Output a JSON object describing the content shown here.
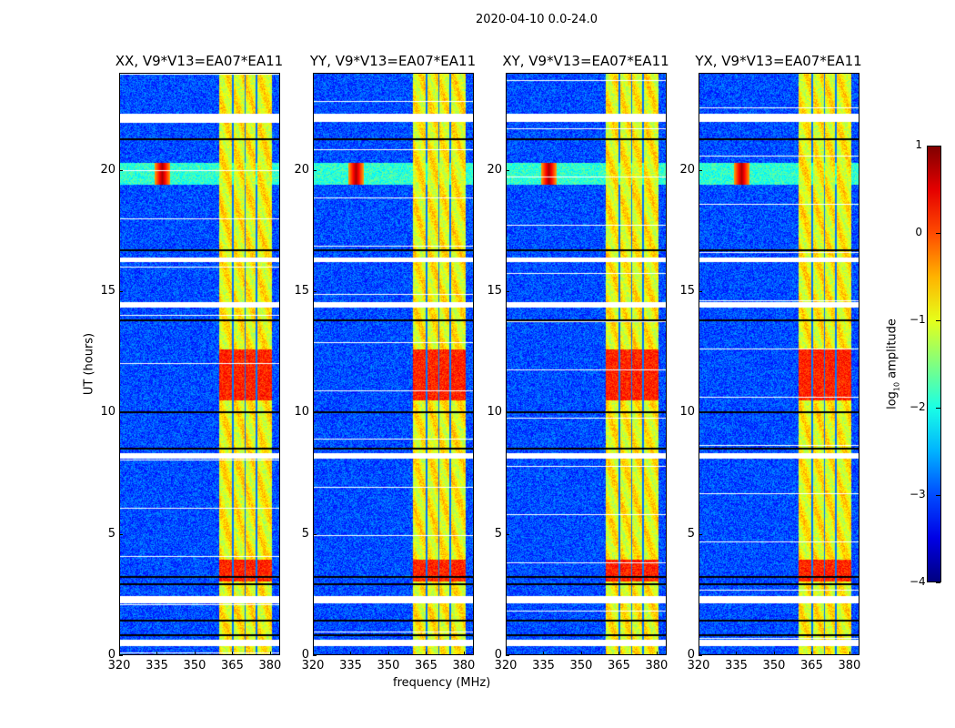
{
  "suptitle": "2020-04-10 0.0-24.0",
  "chart_data": {
    "type": "heatmap",
    "title": "2020-04-10 0.0-24.0",
    "xlabel": "frequency (MHz)",
    "ylabel": "UT (hours)",
    "xlim": [
      320,
      384
    ],
    "ylim": [
      0,
      24
    ],
    "xticks": [
      "320",
      "335",
      "350",
      "365",
      "380"
    ],
    "yticks": [
      "0",
      "5",
      "10",
      "15",
      "20"
    ],
    "panels": [
      {
        "title": "XX, V9*V13=EA07*EA11"
      },
      {
        "title": "YY, V9*V13=EA07*EA11"
      },
      {
        "title": "XY, V9*V13=EA07*EA11"
      },
      {
        "title": "YX, V9*V13=EA07*EA11"
      }
    ],
    "colorbar": {
      "label": "log10 amplitude",
      "label_main": "log",
      "label_sub": "10",
      "label_rest": " amplitude",
      "range": [
        -4,
        1
      ],
      "ticks": [
        "1",
        "0",
        "−1",
        "−2",
        "−3",
        "−4"
      ],
      "colormap": "jet"
    },
    "features": {
      "background_level": -3,
      "rfi_band_mhz": [
        360,
        378
      ],
      "rfi_band_level": -1,
      "strong_rfi_hours": [
        [
          10.5,
          12.6
        ],
        [
          3.0,
          3.9
        ]
      ],
      "strong_rfi_level": 0.2,
      "broadband_burst_hours": [
        19.4,
        20.3
      ],
      "burst_peak_mhz": 337,
      "flagged_hours": [
        [
          0.35,
          0.6
        ],
        [
          2.1,
          2.4
        ],
        [
          8.1,
          8.3
        ],
        [
          14.35,
          14.55
        ],
        [
          16.2,
          16.4
        ],
        [
          22.0,
          22.35
        ]
      ],
      "dropout_hours": [
        0.8,
        1.4,
        2.9,
        3.2,
        8.5,
        10.0,
        13.8,
        16.7,
        21.3
      ]
    }
  }
}
